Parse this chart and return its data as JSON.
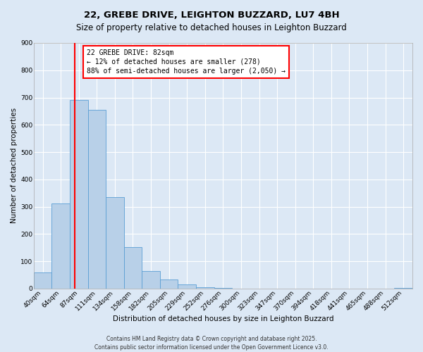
{
  "title": "22, GREBE DRIVE, LEIGHTON BUZZARD, LU7 4BH",
  "subtitle": "Size of property relative to detached houses in Leighton Buzzard",
  "xlabel": "Distribution of detached houses by size in Leighton Buzzard",
  "ylabel": "Number of detached properties",
  "bin_labels": [
    "40sqm",
    "64sqm",
    "87sqm",
    "111sqm",
    "134sqm",
    "158sqm",
    "182sqm",
    "205sqm",
    "229sqm",
    "252sqm",
    "276sqm",
    "300sqm",
    "323sqm",
    "347sqm",
    "370sqm",
    "394sqm",
    "418sqm",
    "441sqm",
    "465sqm",
    "488sqm",
    "512sqm"
  ],
  "bar_values": [
    58,
    312,
    692,
    655,
    335,
    153,
    65,
    32,
    15,
    5,
    1,
    0,
    0,
    0,
    0,
    0,
    0,
    0,
    0,
    0,
    3
  ],
  "bar_color": "#b8d0e8",
  "bar_edge_color": "#5a9fd4",
  "vline_color": "red",
  "annotation_title": "22 GREBE DRIVE: 82sqm",
  "annotation_line1": "← 12% of detached houses are smaller (278)",
  "annotation_line2": "88% of semi-detached houses are larger (2,050) →",
  "ylim": [
    0,
    900
  ],
  "yticks": [
    0,
    100,
    200,
    300,
    400,
    500,
    600,
    700,
    800,
    900
  ],
  "footer1": "Contains HM Land Registry data © Crown copyright and database right 2025.",
  "footer2": "Contains public sector information licensed under the Open Government Licence v3.0.",
  "bg_color": "#dce8f5",
  "plot_bg_color": "#dce8f5",
  "title_fontsize": 9.5,
  "axis_label_fontsize": 7.5,
  "tick_fontsize": 6.5,
  "annotation_fontsize": 7,
  "footer_fontsize": 5.5
}
